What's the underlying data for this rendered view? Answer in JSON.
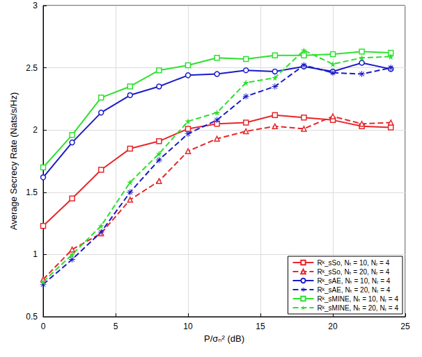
{
  "chart_data": {
    "type": "line",
    "x_label": "P/σₙ² (dB)",
    "y_label": "Average Secrecy Rate (Nats/s/Hz)",
    "xlim": [
      0,
      25
    ],
    "xticks": [
      0,
      5,
      10,
      15,
      20,
      25
    ],
    "ylim": [
      0.5,
      3
    ],
    "yticks": [
      0.5,
      1,
      1.5,
      2,
      2.5,
      3
    ],
    "grid": true,
    "legend": "lower right",
    "x": [
      0,
      2,
      4,
      6,
      8,
      10,
      12,
      14,
      16,
      18,
      20,
      22,
      24
    ],
    "series": [
      {
        "name": "Rᵏ_sSo, Nₜ = 10, Nᵣ = 4",
        "color": "#e8262a",
        "marker": "square",
        "line_style": "solid",
        "values": [
          1.23,
          1.45,
          1.68,
          1.85,
          1.91,
          2.01,
          2.05,
          2.06,
          2.12,
          2.1,
          2.08,
          2.03,
          2.02
        ]
      },
      {
        "name": "Rᵏ_sSo, Nₜ = 20, Nᵣ = 4",
        "color": "#e8262a",
        "marker": "triangle",
        "line_style": "dashed",
        "values": [
          0.8,
          1.04,
          1.17,
          1.44,
          1.59,
          1.83,
          1.93,
          1.99,
          2.03,
          2.01,
          2.11,
          2.05,
          2.06
        ]
      },
      {
        "name": "Rᵏ_sAE, Nₜ = 10, Nᵣ = 4",
        "color": "#1a1ac8",
        "marker": "circle",
        "line_style": "solid",
        "values": [
          1.62,
          1.9,
          2.14,
          2.28,
          2.35,
          2.44,
          2.45,
          2.48,
          2.47,
          2.51,
          2.47,
          2.54,
          2.49
        ]
      },
      {
        "name": "Rᵏ_sAE, Nₜ = 20, Nᵣ = 4",
        "color": "#1a1ac8",
        "marker": "asterisk",
        "line_style": "dashed",
        "values": [
          0.76,
          0.96,
          1.18,
          1.5,
          1.76,
          1.97,
          2.08,
          2.27,
          2.35,
          2.52,
          2.46,
          2.45,
          2.5
        ]
      },
      {
        "name": "Rᵏ_sMINE, Nₜ = 10, Nᵣ = 4",
        "color": "#2ee02e",
        "marker": "square",
        "line_style": "solid",
        "values": [
          1.7,
          1.96,
          2.26,
          2.35,
          2.48,
          2.52,
          2.58,
          2.57,
          2.6,
          2.6,
          2.61,
          2.63,
          2.62
        ]
      },
      {
        "name": "Rᵏ_sMINE, Nₜ = 20, Nᵣ = 4",
        "color": "#2ee02e",
        "marker": "star",
        "line_style": "dashed",
        "values": [
          0.78,
          1.0,
          1.23,
          1.58,
          1.81,
          2.07,
          2.14,
          2.38,
          2.42,
          2.64,
          2.53,
          2.58,
          2.59
        ]
      }
    ]
  }
}
